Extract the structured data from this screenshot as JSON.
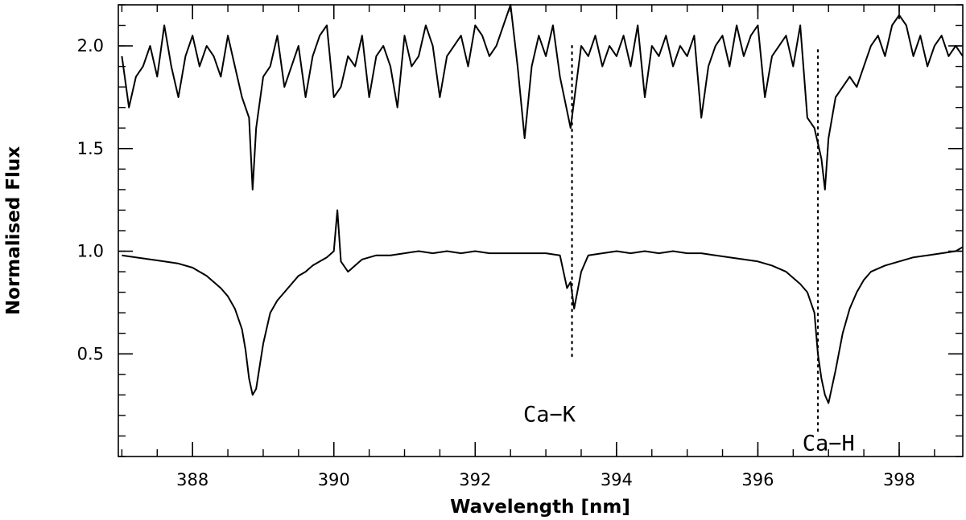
{
  "chart_data": {
    "type": "line",
    "title": "",
    "xlabel": "Wavelength [nm]",
    "ylabel": "Normalised Flux",
    "xlim": [
      386.95,
      398.9
    ],
    "ylim": [
      0.0,
      2.2
    ],
    "x_ticks": [
      388,
      390,
      392,
      394,
      396,
      398
    ],
    "x_tick_labels": [
      "388",
      "390",
      "392",
      "394",
      "396",
      "398"
    ],
    "y_ticks": [
      0.5,
      1.0,
      1.5,
      2.0
    ],
    "y_tick_labels": [
      "0.5",
      "1.0",
      "1.5",
      "2.0"
    ],
    "x_minor_step": 0.5,
    "y_minor_step": 0.1,
    "grid": false,
    "line_color": "#000000",
    "annotations": [
      {
        "label": "Ca−K",
        "wavelength": 393.37,
        "line_from": 0.48,
        "line_to": 2.0,
        "label_x": 393.05,
        "label_y": 0.17
      },
      {
        "label": "Ca−H",
        "wavelength": 396.85,
        "line_from": 0.12,
        "line_to": 1.98,
        "label_x": 397.0,
        "label_y": 0.03
      }
    ],
    "series": [
      {
        "x": [
          387.0,
          387.1,
          387.2,
          387.3,
          387.4,
          387.5,
          387.6,
          387.7,
          387.8,
          387.9,
          388.0,
          388.1,
          388.2,
          388.3,
          388.4,
          388.5,
          388.6,
          388.7,
          388.8,
          388.85,
          388.9,
          389.0,
          389.1,
          389.2,
          389.3,
          389.4,
          389.5,
          389.6,
          389.7,
          389.8,
          389.9,
          390.0,
          390.1,
          390.2,
          390.3,
          390.4,
          390.5,
          390.6,
          390.7,
          390.8,
          390.9,
          391.0,
          391.1,
          391.2,
          391.3,
          391.4,
          391.5,
          391.6,
          391.7,
          391.8,
          391.9,
          392.0,
          392.1,
          392.2,
          392.3,
          392.4,
          392.5,
          392.6,
          392.7,
          392.8,
          392.9,
          393.0,
          393.1,
          393.2,
          393.35,
          393.5,
          393.6,
          393.7,
          393.8,
          393.9,
          394.0,
          394.1,
          394.2,
          394.3,
          394.4,
          394.5,
          394.6,
          394.7,
          394.8,
          394.9,
          395.0,
          395.1,
          395.2,
          395.3,
          395.4,
          395.5,
          395.6,
          395.7,
          395.8,
          395.9,
          396.0,
          396.1,
          396.2,
          396.3,
          396.4,
          396.5,
          396.6,
          396.7,
          396.8,
          396.9,
          396.95,
          397.0,
          397.1,
          397.2,
          397.3,
          397.4,
          397.5,
          397.6,
          397.7,
          397.8,
          397.9,
          398.0,
          398.1,
          398.2,
          398.3,
          398.4,
          398.5,
          398.6,
          398.7,
          398.8,
          398.9
        ],
        "y": [
          1.95,
          1.7,
          1.85,
          1.9,
          2.0,
          1.85,
          2.1,
          1.9,
          1.75,
          1.95,
          2.05,
          1.9,
          2.0,
          1.95,
          1.85,
          2.05,
          1.9,
          1.75,
          1.65,
          1.3,
          1.6,
          1.85,
          1.9,
          2.05,
          1.8,
          1.9,
          2.0,
          1.75,
          1.95,
          2.05,
          2.1,
          1.75,
          1.8,
          1.95,
          1.9,
          2.05,
          1.75,
          1.95,
          2.0,
          1.9,
          1.7,
          2.05,
          1.9,
          1.95,
          2.1,
          2.0,
          1.75,
          1.95,
          2.0,
          2.05,
          1.9,
          2.1,
          2.05,
          1.95,
          2.0,
          2.1,
          2.2,
          1.9,
          1.55,
          1.9,
          2.05,
          1.95,
          2.1,
          1.85,
          1.6,
          2.0,
          1.95,
          2.05,
          1.9,
          2.0,
          1.95,
          2.05,
          1.9,
          2.1,
          1.75,
          2.0,
          1.95,
          2.05,
          1.9,
          2.0,
          1.95,
          2.05,
          1.65,
          1.9,
          2.0,
          2.05,
          1.9,
          2.1,
          1.95,
          2.05,
          2.1,
          1.75,
          1.95,
          2.0,
          2.05,
          1.9,
          2.1,
          1.65,
          1.6,
          1.45,
          1.3,
          1.55,
          1.75,
          1.8,
          1.85,
          1.8,
          1.9,
          2.0,
          2.05,
          1.95,
          2.1,
          2.15,
          2.1,
          1.95,
          2.05,
          1.9,
          2.0,
          2.05,
          1.95,
          2.0,
          1.95
        ]
      },
      {
        "x": [
          387.0,
          387.2,
          387.4,
          387.6,
          387.8,
          388.0,
          388.1,
          388.2,
          388.3,
          388.4,
          388.5,
          388.6,
          388.7,
          388.75,
          388.8,
          388.85,
          388.9,
          389.0,
          389.1,
          389.2,
          389.3,
          389.4,
          389.5,
          389.6,
          389.7,
          389.8,
          389.9,
          390.0,
          390.05,
          390.1,
          390.2,
          390.4,
          390.6,
          390.8,
          391.0,
          391.2,
          391.4,
          391.6,
          391.8,
          392.0,
          392.2,
          392.4,
          392.6,
          392.8,
          393.0,
          393.2,
          393.3,
          393.35,
          393.4,
          393.5,
          393.6,
          393.8,
          394.0,
          394.2,
          394.4,
          394.6,
          394.8,
          395.0,
          395.2,
          395.4,
          395.6,
          395.8,
          396.0,
          396.2,
          396.4,
          396.5,
          396.6,
          396.7,
          396.8,
          396.85,
          396.9,
          396.95,
          397.0,
          397.1,
          397.2,
          397.3,
          397.4,
          397.5,
          397.6,
          397.8,
          398.0,
          398.2,
          398.4,
          398.6,
          398.8,
          398.9
        ],
        "y": [
          0.98,
          0.97,
          0.96,
          0.95,
          0.94,
          0.92,
          0.9,
          0.88,
          0.85,
          0.82,
          0.78,
          0.72,
          0.62,
          0.52,
          0.38,
          0.3,
          0.33,
          0.55,
          0.7,
          0.76,
          0.8,
          0.84,
          0.88,
          0.9,
          0.93,
          0.95,
          0.97,
          1.0,
          1.2,
          0.95,
          0.9,
          0.96,
          0.98,
          0.98,
          0.99,
          1.0,
          0.99,
          1.0,
          0.99,
          1.0,
          0.99,
          0.99,
          0.99,
          0.99,
          0.99,
          0.98,
          0.82,
          0.85,
          0.72,
          0.9,
          0.98,
          0.99,
          1.0,
          0.99,
          1.0,
          0.99,
          1.0,
          0.99,
          0.99,
          0.98,
          0.97,
          0.96,
          0.95,
          0.93,
          0.9,
          0.87,
          0.84,
          0.8,
          0.7,
          0.5,
          0.38,
          0.3,
          0.26,
          0.42,
          0.6,
          0.72,
          0.8,
          0.86,
          0.9,
          0.93,
          0.95,
          0.97,
          0.98,
          0.99,
          1.0,
          1.02
        ]
      }
    ]
  }
}
